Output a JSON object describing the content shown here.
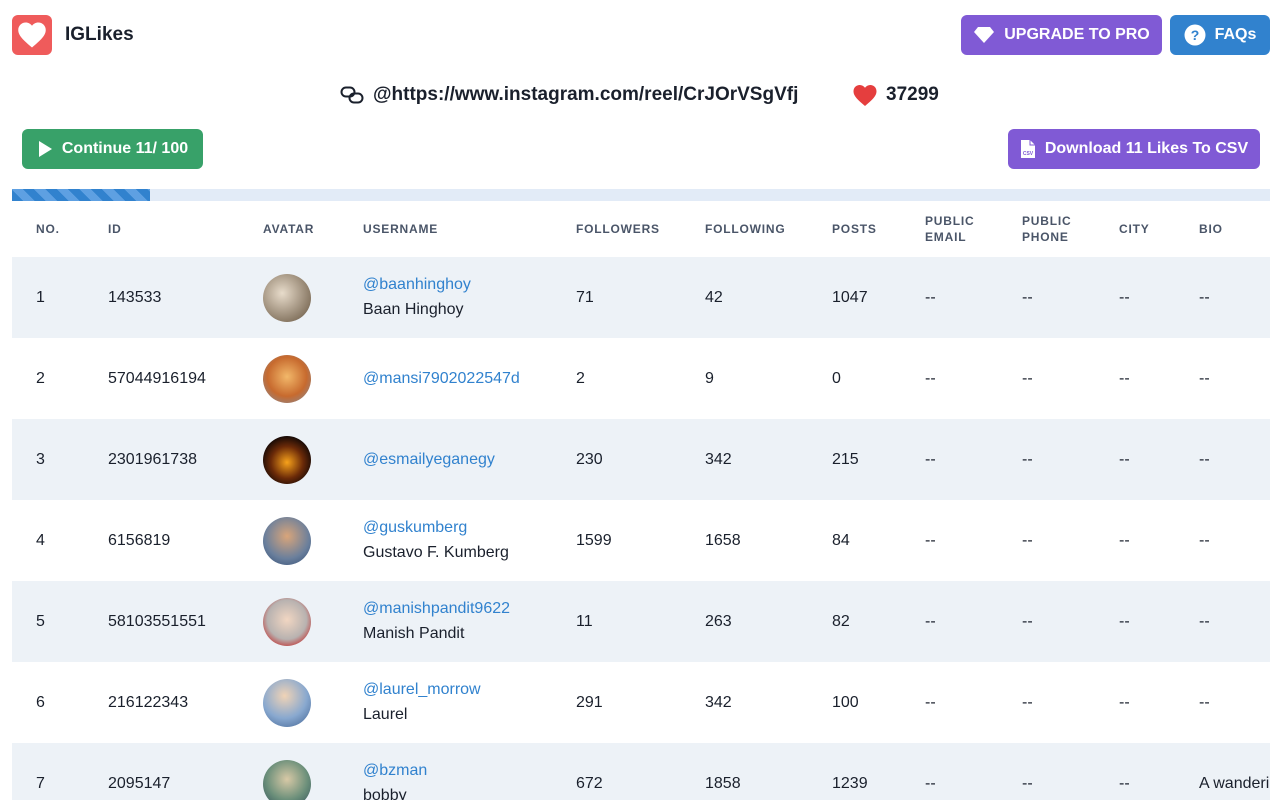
{
  "header": {
    "app_name": "IGLikes",
    "upgrade_label": "UPGRADE TO PRO",
    "faq_label": "FAQs"
  },
  "info": {
    "reel_url": "@https://www.instagram.com/reel/CrJOrVSgVfj",
    "likes_count": "37299"
  },
  "actions": {
    "continue_label": "Continue 11/ 100",
    "download_label": "Download 11 Likes To CSV"
  },
  "progress": {
    "current": 11,
    "total": 100
  },
  "table": {
    "headers": {
      "no": "NO.",
      "id": "ID",
      "avatar": "AVATAR",
      "username": "USERNAME",
      "followers": "FOLLOWERS",
      "following": "FOLLOWING",
      "posts": "POSTS",
      "public_email_1": "PUBLIC",
      "public_email_2": "EMAIL",
      "public_phone_1": "PUBLIC",
      "public_phone_2": "PHONE",
      "city": "CITY",
      "bio": "BIO"
    },
    "rows": [
      {
        "no": "1",
        "id": "143533",
        "handle": "@baanhinghoy",
        "name": "Baan Hinghoy",
        "followers": "71",
        "following": "42",
        "posts": "1047",
        "email": "--",
        "phone": "--",
        "city": "--",
        "bio": "--"
      },
      {
        "no": "2",
        "id": "57044916194",
        "handle": "@mansi7902022547d",
        "name": "",
        "followers": "2",
        "following": "9",
        "posts": "0",
        "email": "--",
        "phone": "--",
        "city": "--",
        "bio": "--"
      },
      {
        "no": "3",
        "id": "2301961738",
        "handle": "@esmailyeganegy",
        "name": "",
        "followers": "230",
        "following": "342",
        "posts": "215",
        "email": "--",
        "phone": "--",
        "city": "--",
        "bio": "--"
      },
      {
        "no": "4",
        "id": "6156819",
        "handle": "@guskumberg",
        "name": "Gustavo F. Kumberg",
        "followers": "1599",
        "following": "1658",
        "posts": "84",
        "email": "--",
        "phone": "--",
        "city": "--",
        "bio": "--"
      },
      {
        "no": "5",
        "id": "58103551551",
        "handle": "@manishpandit9622",
        "name": "Manish Pandit",
        "followers": "11",
        "following": "263",
        "posts": "82",
        "email": "--",
        "phone": "--",
        "city": "--",
        "bio": "--"
      },
      {
        "no": "6",
        "id": "216122343",
        "handle": "@laurel_morrow",
        "name": "Laurel",
        "followers": "291",
        "following": "342",
        "posts": "100",
        "email": "--",
        "phone": "--",
        "city": "--",
        "bio": "--"
      },
      {
        "no": "7",
        "id": "2095147",
        "handle": "@bzman",
        "name": "bobby",
        "followers": "672",
        "following": "1858",
        "posts": "1239",
        "email": "--",
        "phone": "--",
        "city": "--",
        "bio": "A wanderi"
      }
    ]
  },
  "colors": {
    "primary_purple": "#805ad5",
    "primary_blue": "#3182ce",
    "primary_green": "#38a169",
    "logo_red": "#ef5b5b",
    "row_alt": "#edf2f7"
  }
}
